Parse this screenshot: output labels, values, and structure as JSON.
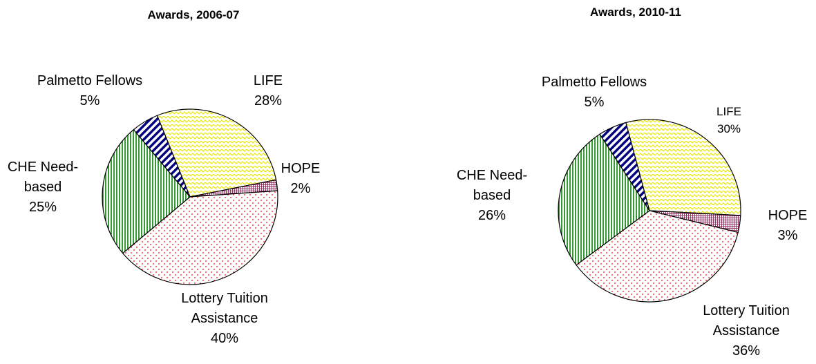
{
  "chart_data": [
    {
      "type": "pie",
      "title": "Awards, 2006-07",
      "categories": [
        "LIFE",
        "HOPE",
        "Lottery Tuition Assistance",
        "CHE Need-based",
        "Palmetto Fellows"
      ],
      "values": [
        28,
        2,
        40,
        25,
        5
      ],
      "value_labels": [
        "28%",
        "2%",
        "40%",
        "25%",
        "5%"
      ],
      "colors": [
        "#e8e800",
        "#993366",
        "#ff0000",
        "#008000",
        "#000080"
      ]
    },
    {
      "type": "pie",
      "title": "Awards, 2010-11",
      "categories": [
        "LIFE",
        "HOPE",
        "Lottery Tuition Assistance",
        "CHE Need-based",
        "Palmetto Fellows"
      ],
      "values": [
        30,
        3,
        36,
        26,
        5
      ],
      "value_labels": [
        "30%",
        "3%",
        "36%",
        "26%",
        "5%"
      ],
      "colors": [
        "#e8e800",
        "#993366",
        "#ff0000",
        "#008000",
        "#000080"
      ]
    }
  ]
}
